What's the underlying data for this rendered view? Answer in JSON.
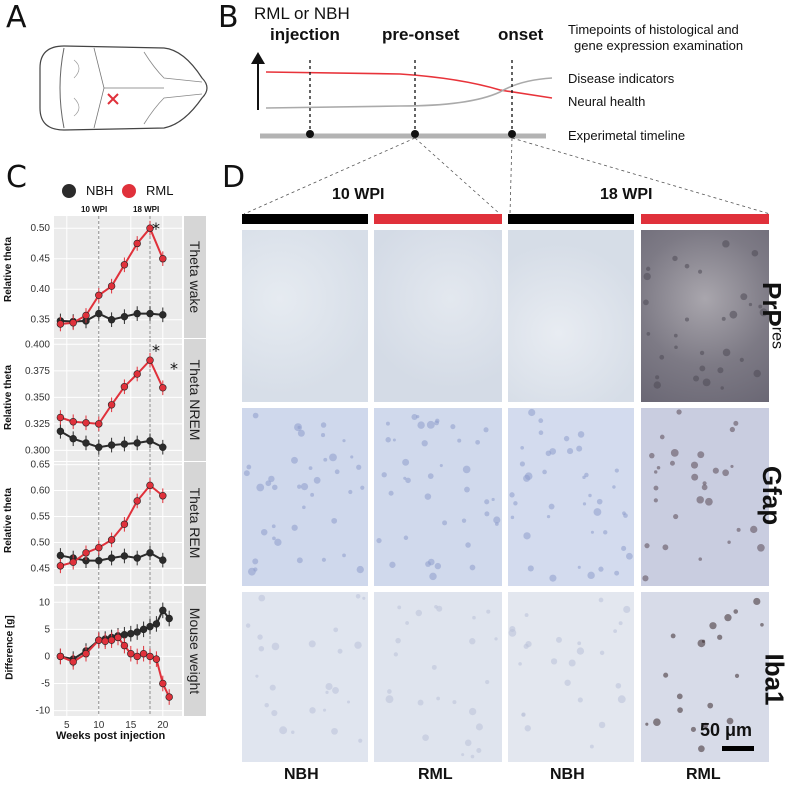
{
  "panels": {
    "a": "A",
    "b": "B",
    "c": "C",
    "d": "D"
  },
  "panel_b": {
    "title_line1": "RML or NBH",
    "injection": "injection",
    "pre_onset": "pre-onset",
    "onset": "onset",
    "timepoints_line1": "Timepoints of histological and",
    "timepoints_line2": "gene expression examination",
    "disease_indicators": "Disease indicators",
    "neural_health": "Neural health",
    "timeline": "Experimetal timeline",
    "colors": {
      "neural_health": "#e8333a",
      "disease": "#aaaaaa",
      "timeline": "#b3b3b3"
    }
  },
  "panel_c": {
    "legend": [
      {
        "label": "NBH",
        "color": "#2b2b2b"
      },
      {
        "label": "RML",
        "color": "#e0313b"
      }
    ],
    "vline_labels": [
      "10 WPI",
      "18 WPI"
    ],
    "xlabel": "Weeks post injection",
    "x_ticks": [
      "5",
      "10",
      "15",
      "20"
    ],
    "facets": [
      {
        "facet": "Theta wake",
        "ylabel": "Relative theta",
        "y_ticks": [
          "0.50",
          "0.45",
          "0.40",
          "0.35"
        ]
      },
      {
        "facet": "Theta NREM",
        "ylabel": "Relative theta",
        "y_ticks": [
          "0.400",
          "0.375",
          "0.350",
          "0.325",
          "0.300"
        ]
      },
      {
        "facet": "Theta REM",
        "ylabel": "Relative theta",
        "y_ticks": [
          "0.65",
          "0.60",
          "0.55",
          "0.50",
          "0.45"
        ]
      },
      {
        "facet": "Mouse weight",
        "ylabel": "Difference [g]",
        "y_ticks": [
          "10",
          "5",
          "0",
          "-5",
          "-10"
        ]
      }
    ],
    "asterisk": "*"
  },
  "chart_data": [
    {
      "type": "line",
      "facet": "Theta wake",
      "ylim": [
        0.32,
        0.52
      ],
      "x": [
        4,
        6,
        8,
        10,
        12,
        14,
        16,
        18,
        20
      ],
      "series": [
        {
          "name": "NBH",
          "values": [
            0.348,
            0.347,
            0.348,
            0.36,
            0.35,
            0.355,
            0.36,
            0.36,
            0.358
          ]
        },
        {
          "name": "RML",
          "values": [
            0.343,
            0.345,
            0.357,
            0.39,
            0.405,
            0.44,
            0.475,
            0.5,
            0.45
          ]
        }
      ]
    },
    {
      "type": "line",
      "facet": "Theta NREM",
      "ylim": [
        0.29,
        0.405
      ],
      "x": [
        4,
        6,
        8,
        10,
        12,
        14,
        16,
        18,
        20
      ],
      "series": [
        {
          "name": "NBH",
          "values": [
            0.318,
            0.311,
            0.307,
            0.303,
            0.305,
            0.306,
            0.307,
            0.309,
            0.303
          ]
        },
        {
          "name": "RML",
          "values": [
            0.331,
            0.327,
            0.326,
            0.325,
            0.343,
            0.36,
            0.372,
            0.385,
            0.359
          ]
        }
      ]
    },
    {
      "type": "line",
      "facet": "Theta REM",
      "ylim": [
        0.42,
        0.655
      ],
      "x": [
        4,
        6,
        8,
        10,
        12,
        14,
        16,
        18,
        20
      ],
      "series": [
        {
          "name": "NBH",
          "values": [
            0.475,
            0.47,
            0.465,
            0.465,
            0.47,
            0.474,
            0.47,
            0.48,
            0.466
          ]
        },
        {
          "name": "RML",
          "values": [
            0.455,
            0.462,
            0.48,
            0.49,
            0.505,
            0.535,
            0.58,
            0.61,
            0.59
          ]
        }
      ]
    },
    {
      "type": "line",
      "facet": "Mouse weight",
      "ylim": [
        -11,
        13
      ],
      "x": [
        4,
        6,
        8,
        10,
        11,
        12,
        13,
        14,
        15,
        16,
        17,
        18,
        19,
        20,
        21
      ],
      "series": [
        {
          "name": "NBH",
          "values": [
            0,
            -0.5,
            1,
            3,
            3.2,
            3.5,
            3.8,
            4,
            4.2,
            4.5,
            5,
            5.5,
            6,
            8.5,
            7
          ]
        },
        {
          "name": "RML",
          "values": [
            0,
            -1,
            0.5,
            3,
            2.8,
            3,
            3.5,
            2,
            0.5,
            0,
            0.5,
            0,
            -0.5,
            -5,
            -7.5
          ]
        }
      ]
    }
  ],
  "panel_d": {
    "groups": [
      "10 WPI",
      "18 WPI"
    ],
    "bars": [
      {
        "color": "#000000"
      },
      {
        "color": "#e0313b"
      },
      {
        "color": "#000000"
      },
      {
        "color": "#e0313b"
      }
    ],
    "rows": [
      {
        "label": "PrP",
        "sup": "res"
      },
      {
        "label": "Gfap",
        "sup": ""
      },
      {
        "label": "Iba1",
        "sup": ""
      }
    ],
    "cols": [
      "NBH",
      "RML",
      "NBH",
      "RML"
    ],
    "scale_bar": "50 μm"
  }
}
